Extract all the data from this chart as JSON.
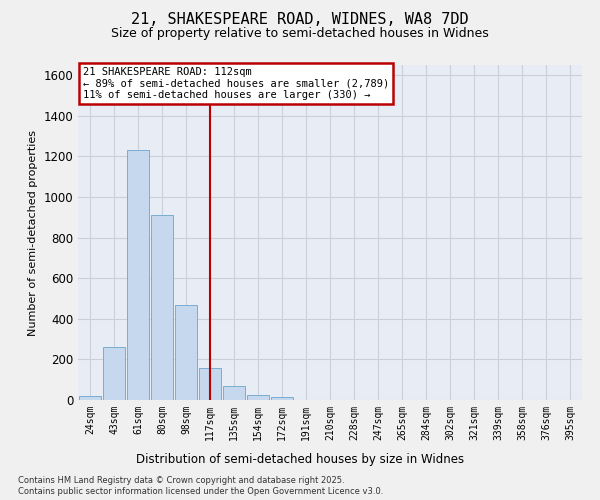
{
  "title": "21, SHAKESPEARE ROAD, WIDNES, WA8 7DD",
  "subtitle": "Size of property relative to semi-detached houses in Widnes",
  "xlabel": "Distribution of semi-detached houses by size in Widnes",
  "ylabel": "Number of semi-detached properties",
  "categories": [
    "24sqm",
    "43sqm",
    "61sqm",
    "80sqm",
    "98sqm",
    "117sqm",
    "135sqm",
    "154sqm",
    "172sqm",
    "191sqm",
    "210sqm",
    "228sqm",
    "247sqm",
    "265sqm",
    "284sqm",
    "302sqm",
    "321sqm",
    "339sqm",
    "358sqm",
    "376sqm",
    "395sqm"
  ],
  "values": [
    20,
    260,
    1230,
    910,
    470,
    160,
    70,
    25,
    15,
    0,
    0,
    0,
    0,
    0,
    0,
    0,
    0,
    0,
    0,
    0,
    0
  ],
  "bar_color": "#c5d8ee",
  "bar_edge_color": "#7aadd4",
  "vline_color": "#bb0000",
  "vline_x": 5,
  "annotation_title": "21 SHAKESPEARE ROAD: 112sqm",
  "annotation_line1": "← 89% of semi-detached houses are smaller (2,789)",
  "annotation_line2": "11% of semi-detached houses are larger (330) →",
  "box_edge_color": "#bb0000",
  "bg_color": "#e8edf5",
  "fig_bg_color": "#f0f0f0",
  "grid_color": "#c8d0dc",
  "ylim_max": 1650,
  "yticks": [
    0,
    200,
    400,
    600,
    800,
    1000,
    1200,
    1400,
    1600
  ],
  "footnote1": "Contains HM Land Registry data © Crown copyright and database right 2025.",
  "footnote2": "Contains public sector information licensed under the Open Government Licence v3.0."
}
